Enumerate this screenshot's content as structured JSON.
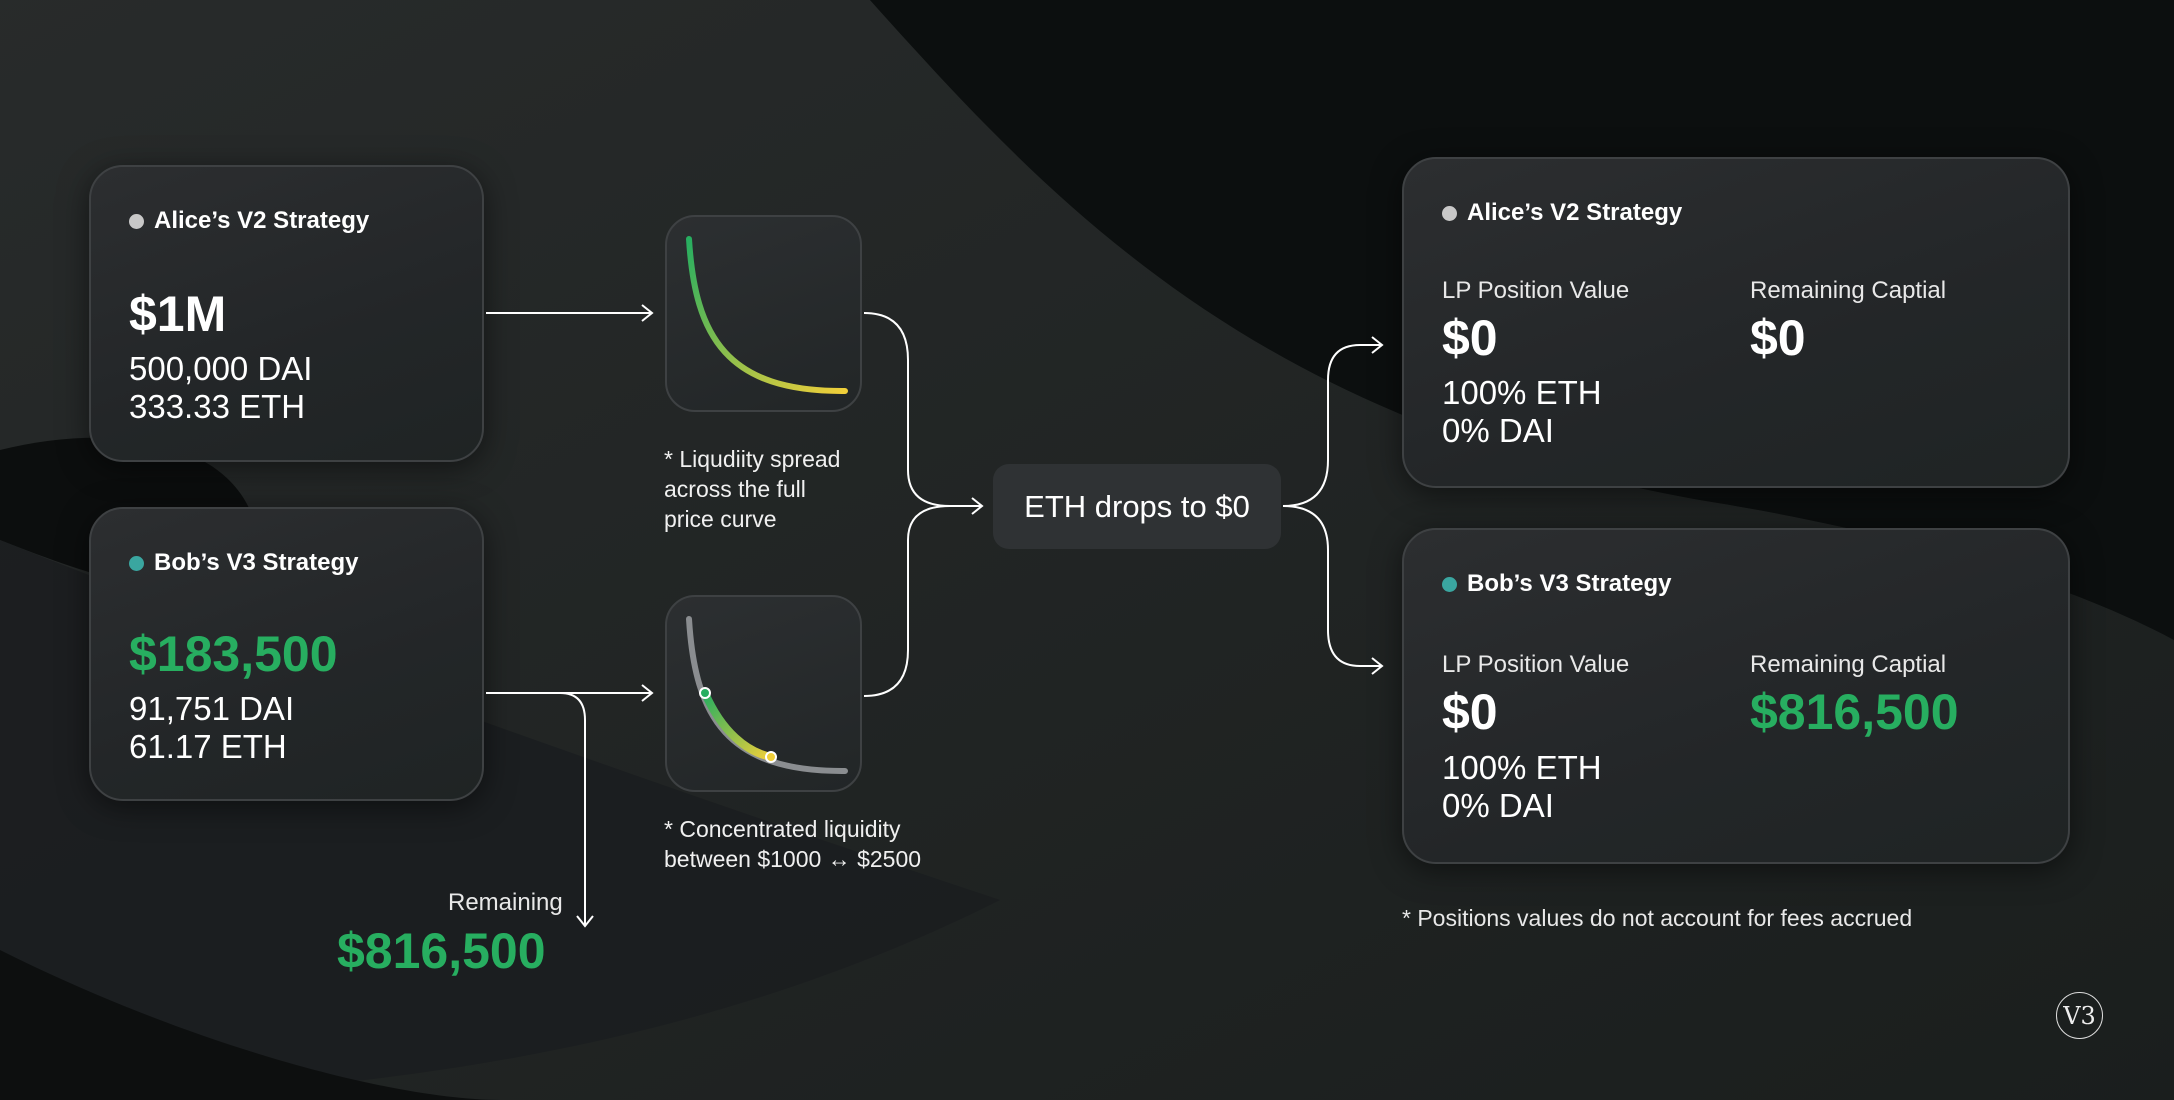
{
  "left": {
    "alice": {
      "title": "Alice’s V2 Strategy",
      "value": "$1M",
      "dai": "500,000 DAI",
      "eth": "333.33 ETH",
      "dot_color": "#c8c8c8"
    },
    "bob": {
      "title": "Bob’s V3 Strategy",
      "value": "$183,500",
      "dai": "91,751 DAI",
      "eth": "61.17 ETH",
      "dot_color": "#3aa6a0"
    },
    "remaining_label": "Remaining",
    "remaining_value": "$816,500"
  },
  "curves": {
    "v2_note": [
      "* Liqudiity spread",
      "across the full",
      "price curve"
    ],
    "v3_note": [
      "* Concentrated liquidity",
      "between $1000 ↔ $2500"
    ]
  },
  "event": "ETH drops to $0",
  "right": {
    "alice": {
      "title": "Alice’s V2 Strategy",
      "lp_label": "LP Position Value",
      "lp_value": "$0",
      "eth": "100% ETH",
      "dai": "0% DAI",
      "rem_label": "Remaining Captial",
      "rem_value": "$0"
    },
    "bob": {
      "title": "Bob’s V3 Strategy",
      "lp_label": "LP Position Value",
      "lp_value": "$0",
      "eth": "100% ETH",
      "dai": "0% DAI",
      "rem_label": "Remaining Captial",
      "rem_value": "$816,500"
    },
    "footnote": "* Positions values do not account for fees accrued"
  },
  "logo": "V3",
  "colors": {
    "green": "#27ae60",
    "yellow": "#e8c93a",
    "gray": "#8a8d90"
  }
}
